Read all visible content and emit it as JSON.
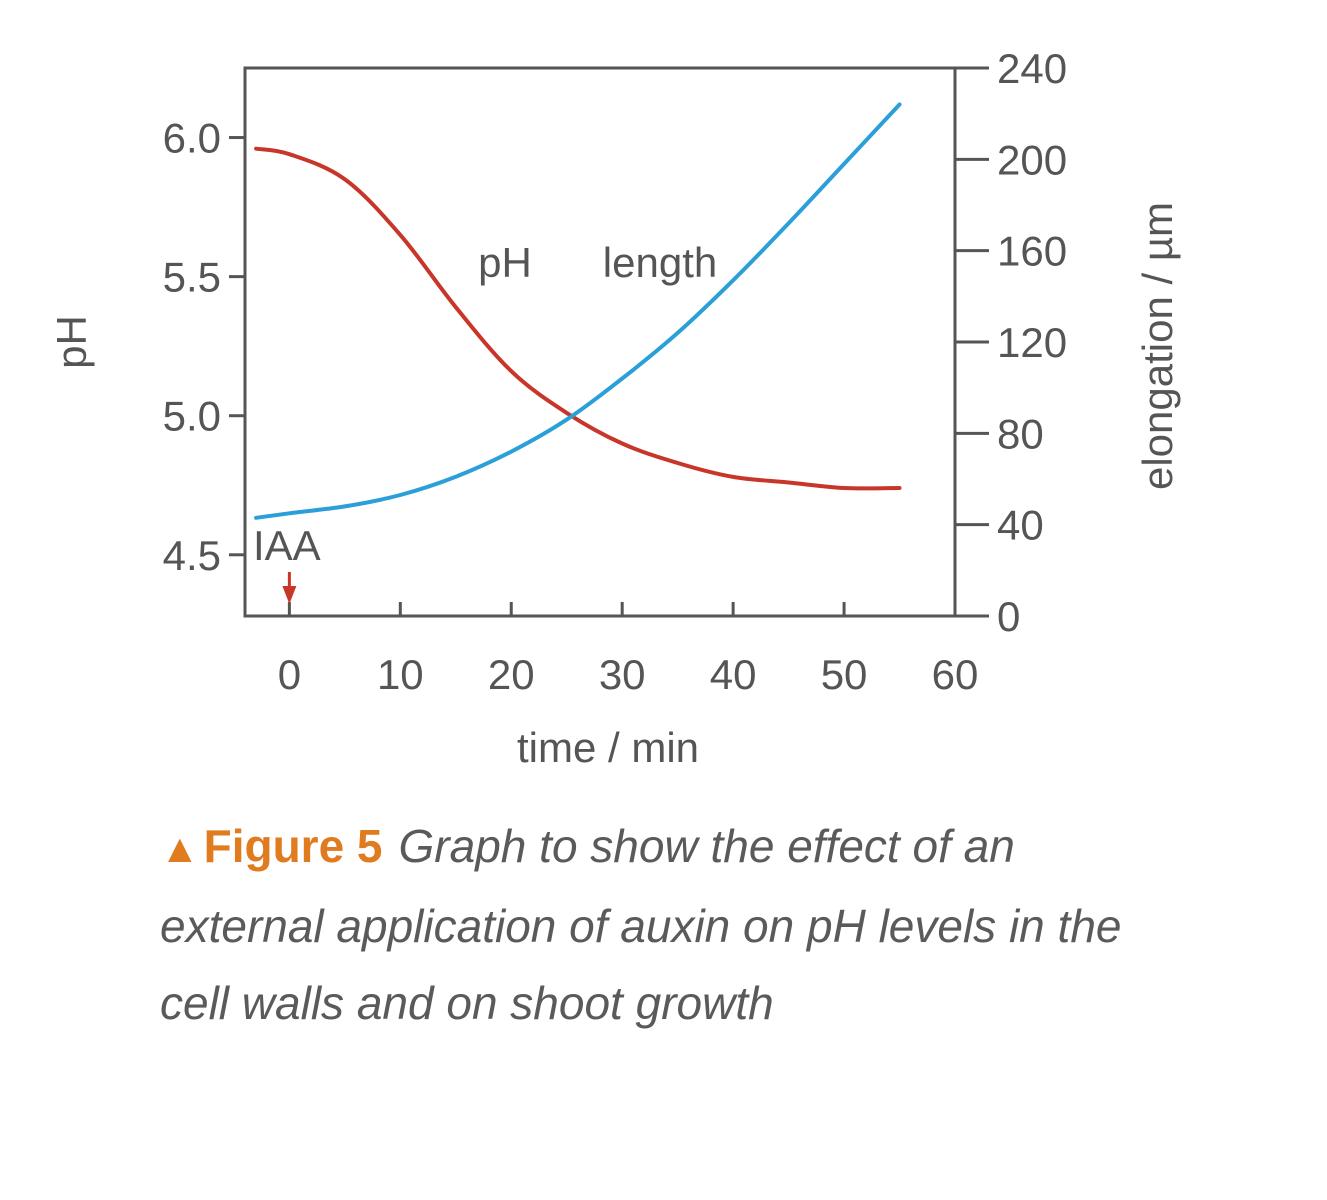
{
  "chart_data": {
    "type": "line",
    "xlabel": "time / min",
    "ylabel_left": "pH",
    "ylabel_right": "elongation / µm",
    "xlim": [
      -4,
      60
    ],
    "ylim_left": [
      4.28,
      6.25
    ],
    "ylim_right": [
      0,
      240
    ],
    "x_ticks": [
      0,
      10,
      20,
      30,
      40,
      50,
      60
    ],
    "y_left_ticks": [
      4.5,
      5.0,
      5.5,
      6.0
    ],
    "y_left_tick_labels": [
      "4.5",
      "5.0",
      "5.5",
      "6.0"
    ],
    "y_right_ticks": [
      0,
      40,
      80,
      120,
      160,
      200,
      240
    ],
    "series": [
      {
        "name": "pH",
        "label": "pH",
        "axis": "left",
        "color": "#c8362a",
        "x": [
          -3,
          0,
          5,
          10,
          15,
          20,
          25,
          30,
          35,
          40,
          45,
          50,
          55
        ],
        "values": [
          5.96,
          5.94,
          5.85,
          5.65,
          5.39,
          5.16,
          5.01,
          4.9,
          4.83,
          4.78,
          4.76,
          4.74,
          4.74
        ]
      },
      {
        "name": "length",
        "label": "length",
        "axis": "right",
        "color": "#2a9fd8",
        "x": [
          -3,
          0,
          5,
          10,
          15,
          20,
          25,
          30,
          35,
          40,
          45,
          50,
          55
        ],
        "values": [
          43,
          45,
          48,
          53,
          61,
          72,
          86,
          104,
          124,
          147,
          172,
          198,
          224
        ]
      }
    ],
    "annotation": {
      "text": "IAA",
      "x": 0,
      "color": "#c8362a"
    }
  },
  "caption": {
    "figure_label": "Figure 5",
    "text": "Graph to show the effect of an external application of auxin on pH levels in the cell walls and on shoot growth",
    "accent_color": "#e07b1f"
  }
}
